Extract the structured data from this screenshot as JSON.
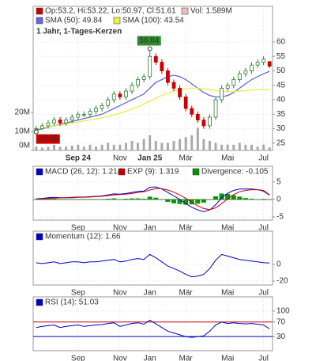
{
  "chart_data": [
    {
      "type": "candlestick",
      "title": "1 Jahr, 1-Tages-Kerzen",
      "ohlc_label": "Op:53.2, Hi:53.22, Lo:50.97, Cl:51.61",
      "ohlc_color": "#cc0000",
      "up_color": "#2e7d32",
      "down_color": "#cc0000",
      "open": [
        30,
        30,
        31,
        32,
        33,
        32,
        33,
        34,
        35,
        35,
        36,
        37,
        38,
        40,
        42,
        41,
        43,
        45,
        47,
        48,
        55,
        53,
        50,
        46,
        44,
        41,
        37,
        35,
        33,
        31,
        34,
        40,
        44,
        45,
        47,
        49,
        50,
        52,
        53,
        53.2
      ],
      "high": [
        31,
        32,
        33,
        34,
        34,
        34,
        35,
        36,
        36,
        37,
        38,
        39,
        41,
        43,
        43,
        44,
        46,
        48,
        49,
        56.84,
        56,
        54,
        51,
        47,
        45,
        42,
        38,
        36,
        34,
        35,
        41,
        45,
        46,
        48,
        50,
        51,
        53,
        54,
        55,
        53.22
      ],
      "low": [
        29.45,
        29.6,
        30,
        31,
        31,
        31,
        32,
        33,
        34,
        34,
        35,
        36,
        37,
        39,
        40,
        40,
        42,
        44,
        46,
        47,
        52,
        49,
        45,
        43,
        40,
        36,
        34,
        32,
        30,
        30,
        33,
        39,
        43,
        44,
        46,
        48,
        49,
        51,
        52,
        50.97
      ],
      "close": [
        30,
        31,
        32,
        33,
        32,
        33,
        34,
        35,
        35,
        36,
        37,
        38,
        40,
        42,
        41,
        43,
        45,
        47,
        48,
        55,
        53,
        50,
        46,
        44,
        41,
        37,
        35,
        33,
        31,
        34,
        40,
        44,
        45,
        47,
        49,
        50,
        52,
        53,
        54,
        51.61
      ],
      "volume": {
        "name": "Vol: 1.589M",
        "color": "#aaaaaa",
        "axis": "y2",
        "values": [
          2000000,
          1500000,
          2000000,
          3000000,
          2000000,
          2000000,
          2500000,
          3000000,
          2000000,
          3000000,
          2000000,
          3000000,
          4000000,
          3000000,
          3000000,
          4000000,
          5000000,
          4000000,
          6000000,
          8000000,
          5000000,
          4000000,
          4000000,
          5000000,
          6000000,
          7000000,
          8000000,
          12000000,
          6000000,
          5000000,
          4000000,
          3000000,
          3000000,
          3000000,
          4000000,
          3000000,
          3000000,
          2000000,
          3000000,
          1589000
        ]
      },
      "series": [
        {
          "name": "SMA (50): 49.84",
          "color": "#6666dd",
          "values": [
            29.5,
            30,
            30.5,
            31,
            31.5,
            32,
            32.5,
            33,
            33.5,
            34,
            34.5,
            35,
            36,
            37,
            38,
            39,
            40,
            41,
            42,
            44,
            46,
            47,
            48,
            48.5,
            48,
            47,
            45.5,
            44,
            42.5,
            41.5,
            41,
            41,
            41.5,
            42.5,
            44,
            45.5,
            47,
            48,
            49,
            49.84
          ]
        },
        {
          "name": "SMA (100): 43.54",
          "color": "#eeee44",
          "values": [
            30,
            30.3,
            30.6,
            31,
            31.3,
            31.6,
            32,
            32.3,
            32.7,
            33,
            33.4,
            33.8,
            34.3,
            34.8,
            35.4,
            36,
            36.8,
            37.6,
            38.5,
            39.5,
            40.5,
            41.5,
            42.3,
            43,
            43.5,
            43.8,
            44,
            44,
            43.8,
            43.5,
            43.2,
            43,
            42.8,
            42.8,
            43,
            43.2,
            43.4,
            43.5,
            43.5,
            43.54
          ]
        }
      ],
      "annotations": [
        {
          "text": 56.84,
          "index": 19,
          "color": "#2e8b2e"
        },
        {
          "text": 29.45,
          "index": 0,
          "color": "#cc0000"
        }
      ],
      "xlim": [
        -0.5,
        39.5
      ],
      "xticks": [
        {
          "value": 7,
          "label": "Sep 24"
        },
        {
          "value": 14,
          "label": "Nov"
        },
        {
          "value": 19,
          "label": "Jan 25"
        },
        {
          "value": 25,
          "label": "Mär"
        },
        {
          "value": 32,
          "label": "Mai"
        },
        {
          "value": 38,
          "label": "Jul"
        }
      ],
      "ylim": [
        22.5,
        72.3
      ],
      "yticks": [
        25,
        30,
        35,
        40,
        45,
        50,
        55,
        60
      ],
      "y2lim": [
        0,
        76000000
      ],
      "y2ticks": [
        {
          "value": 0,
          "label": "0M"
        },
        {
          "value": 10000000,
          "label": "10M"
        },
        {
          "value": 20000000,
          "label": "20M"
        }
      ],
      "grid": true
    },
    {
      "type": "macd",
      "series": [
        {
          "name": "MACD (26, 12): 1.214",
          "color": "#0000cc",
          "values": [
            0.2,
            0.3,
            0.5,
            0.6,
            0.5,
            0.5,
            0.6,
            0.7,
            0.7,
            0.8,
            0.9,
            1,
            1.3,
            1.6,
            1.5,
            1.7,
            2,
            2.3,
            2.4,
            3.5,
            3.6,
            3,
            2,
            1,
            0,
            -1.2,
            -2.2,
            -3,
            -3.5,
            -3,
            -1.5,
            0.5,
            1.8,
            2.6,
            3,
            3,
            3,
            2.8,
            2.4,
            1.214
          ]
        },
        {
          "name": "EXP (9): 1.319",
          "color": "#cc0000",
          "values": [
            0.1,
            0.2,
            0.3,
            0.4,
            0.45,
            0.5,
            0.5,
            0.6,
            0.65,
            0.7,
            0.8,
            0.9,
            1.1,
            1.3,
            1.4,
            1.5,
            1.7,
            2,
            2.2,
            2.7,
            3.1,
            3.1,
            2.7,
            2.1,
            1.3,
            0.3,
            -0.8,
            -1.8,
            -2.6,
            -2.9,
            -2.4,
            -1.2,
            0.2,
            1.4,
            2.2,
            2.6,
            2.8,
            2.8,
            2.6,
            1.319
          ]
        },
        {
          "name": "Divergence: -0.105",
          "color": "#009900",
          "bars": true,
          "values": [
            0.1,
            0.1,
            0.2,
            0.2,
            0.05,
            0,
            0.1,
            0.1,
            0.05,
            0.1,
            0.1,
            0.1,
            0.2,
            0.3,
            0.1,
            0.2,
            0.3,
            0.3,
            0.2,
            0.8,
            0.5,
            -0.1,
            -0.7,
            -1.1,
            -1.3,
            -1.5,
            -1.4,
            -1.2,
            -0.9,
            -0.1,
            0.9,
            1.7,
            1.6,
            1.2,
            0.8,
            0.4,
            0.2,
            0,
            -0.2,
            -0.105
          ]
        }
      ],
      "xlim": [
        -0.5,
        39.5
      ],
      "xticks": [
        {
          "value": 7,
          "label": "Sep"
        },
        {
          "value": 14,
          "label": "Nov"
        },
        {
          "value": 19,
          "label": "Jan"
        },
        {
          "value": 25,
          "label": "Mär"
        },
        {
          "value": 32,
          "label": "Mai"
        },
        {
          "value": 38,
          "label": "Jul"
        }
      ],
      "ylim": [
        -5.9,
        9.5
      ],
      "yticks": [
        -5,
        0,
        5
      ],
      "grid": true
    },
    {
      "type": "line",
      "series": [
        {
          "name": "Momentum (12): 1.66",
          "color": "#0000cc",
          "values": [
            2,
            1,
            2,
            3,
            1,
            2,
            3,
            3,
            2,
            3,
            3,
            4,
            5,
            6,
            3,
            4,
            6,
            7,
            6,
            12,
            8,
            3,
            -2,
            -5,
            -8,
            -12,
            -15,
            -14,
            -12,
            -5,
            5,
            12,
            10,
            8,
            6,
            5,
            4,
            3,
            2,
            1.66
          ]
        }
      ],
      "xlim": [
        -0.5,
        39.5
      ],
      "xticks": [
        {
          "value": 7,
          "label": "Sep"
        },
        {
          "value": 14,
          "label": "Nov"
        },
        {
          "value": 19,
          "label": "Jan"
        },
        {
          "value": 25,
          "label": "Mär"
        },
        {
          "value": 32,
          "label": "Mai"
        },
        {
          "value": 38,
          "label": "Jul"
        }
      ],
      "ylim": [
        -24.8,
        40
      ],
      "yticks": [
        -20,
        0
      ],
      "grid": true
    },
    {
      "type": "line",
      "series": [
        {
          "name": "RSI (14): 51.03",
          "color": "#0000cc",
          "values": [
            55,
            58,
            60,
            62,
            55,
            58,
            60,
            62,
            58,
            60,
            62,
            63,
            66,
            68,
            58,
            62,
            66,
            68,
            64,
            75,
            65,
            55,
            45,
            40,
            35,
            30,
            28,
            30,
            32,
            45,
            62,
            70,
            66,
            68,
            66,
            65,
            66,
            64,
            62,
            51.03
          ]
        }
      ],
      "xlim": [
        -0.5,
        39.5
      ],
      "xticks": [
        {
          "value": 7,
          "label": "Sep"
        },
        {
          "value": 14,
          "label": "Nov"
        },
        {
          "value": 19,
          "label": "Jan"
        },
        {
          "value": 25,
          "label": "Mär"
        },
        {
          "value": 32,
          "label": "Mai"
        },
        {
          "value": 38,
          "label": "Jul"
        }
      ],
      "ylim": [
        -8.7,
        139
      ],
      "yticks": [
        30,
        70,
        100
      ],
      "ytick_colors": [
        "#0000cc",
        "#cc0000",
        "#333333"
      ],
      "ref_lines": [
        {
          "value": 70,
          "color": "#cc0000"
        },
        {
          "value": 30,
          "color": "#0000cc"
        }
      ],
      "grid": true
    }
  ]
}
